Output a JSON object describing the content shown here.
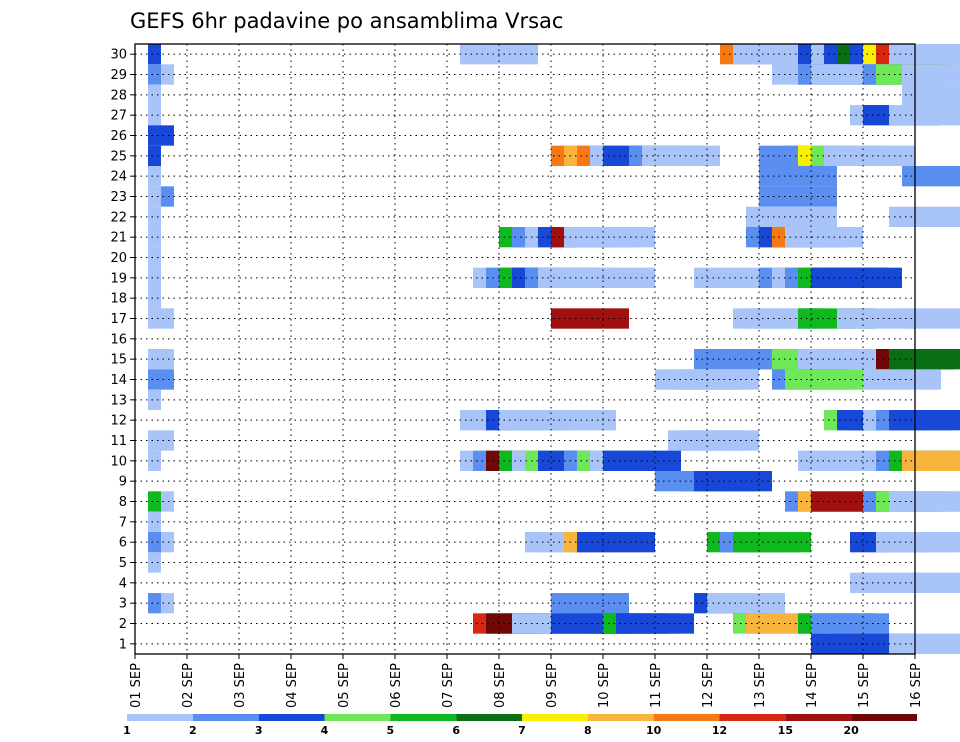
{
  "chart_data": {
    "type": "heatmap",
    "title": "GEFS 6hr padavine po ansamblima Vrsac",
    "x_tick_labels": [
      "01 SEP",
      "02 SEP",
      "03 SEP",
      "04 SEP",
      "05 SEP",
      "06 SEP",
      "07 SEP",
      "08 SEP",
      "09 SEP",
      "10 SEP",
      "11 SEP",
      "12 SEP",
      "13 SEP",
      "14 SEP",
      "15 SEP",
      "16 SEP"
    ],
    "y_tick_labels": [
      "1",
      "2",
      "3",
      "4",
      "5",
      "6",
      "7",
      "8",
      "9",
      "10",
      "11",
      "12",
      "13",
      "14",
      "15",
      "16",
      "17",
      "18",
      "19",
      "20",
      "21",
      "22",
      "23",
      "24",
      "25",
      "26",
      "27",
      "28",
      "29",
      "30"
    ],
    "x_range": [
      0,
      60
    ],
    "y_range": [
      0,
      30
    ],
    "grid": true,
    "legend_position": "bottom",
    "color_bins": [
      "#a8c4f8",
      "#5a8ef0",
      "#1848d8",
      "#6ee858",
      "#10b820",
      "#0a6e14",
      "#f8f000",
      "#f8b43c",
      "#f87814",
      "#d82814",
      "#a01010",
      "#700808"
    ],
    "legend_labels": [
      "1",
      "2",
      "3",
      "4",
      "5",
      "6",
      "7",
      "8",
      "10",
      "12",
      "15",
      "20"
    ],
    "cells": [
      [
        1,
        0,
        29,
        2
      ],
      [
        1,
        0,
        28,
        1
      ],
      [
        1,
        0,
        27,
        0
      ],
      [
        1,
        0,
        26,
        0
      ],
      [
        1,
        0,
        25,
        2
      ],
      [
        2,
        0,
        25,
        2
      ],
      [
        1,
        0,
        24,
        2
      ],
      [
        1,
        0,
        23,
        0
      ],
      [
        1,
        0,
        22,
        0
      ],
      [
        2,
        0,
        22,
        1
      ],
      [
        1,
        0,
        21,
        0
      ],
      [
        1,
        0,
        20,
        0
      ],
      [
        1,
        0,
        19,
        0
      ],
      [
        1,
        0,
        18,
        0
      ],
      [
        1,
        0,
        17,
        0
      ],
      [
        1,
        0,
        16,
        0
      ],
      [
        2,
        0,
        16,
        0
      ],
      [
        1,
        0,
        14,
        0
      ],
      [
        2,
        0,
        14,
        0
      ],
      [
        1,
        0,
        13,
        1
      ],
      [
        2,
        0,
        13,
        1
      ],
      [
        1,
        0,
        12,
        0
      ],
      [
        1,
        0,
        10,
        0
      ],
      [
        2,
        0,
        10,
        0
      ],
      [
        1,
        0,
        9,
        0
      ],
      [
        1,
        0,
        7,
        4
      ],
      [
        2,
        0,
        7,
        0
      ],
      [
        1,
        0,
        6,
        0
      ],
      [
        1,
        0,
        5,
        1
      ],
      [
        2,
        0,
        5,
        0
      ],
      [
        1,
        0,
        4,
        0
      ],
      [
        1,
        0,
        2,
        1
      ],
      [
        2,
        0,
        2,
        0
      ],
      [
        2,
        0,
        28,
        0
      ],
      [
        25,
        6,
        29,
        0
      ],
      [
        45,
        6,
        29,
        8
      ],
      [
        46,
        6,
        29,
        0
      ],
      [
        47,
        6,
        29,
        0
      ],
      [
        50,
        6,
        29,
        0
      ],
      [
        51,
        6,
        29,
        2
      ],
      [
        52,
        6,
        29,
        0
      ],
      [
        53,
        6,
        29,
        2
      ],
      [
        54,
        6,
        29,
        5
      ],
      [
        55,
        6,
        29,
        2
      ],
      [
        56,
        6,
        29,
        6
      ],
      [
        57,
        6,
        29,
        9
      ],
      [
        58,
        6,
        29,
        0
      ],
      [
        49,
        6,
        28,
        0
      ],
      [
        51,
        6,
        28,
        1
      ],
      [
        52,
        6,
        28,
        0
      ],
      [
        53,
        6,
        28,
        0
      ],
      [
        56,
        6,
        28,
        1
      ],
      [
        57,
        6,
        28,
        3
      ],
      [
        59,
        6,
        28,
        0
      ],
      [
        59,
        6,
        27,
        0
      ],
      [
        55,
        6,
        26,
        0
      ],
      [
        56,
        6,
        26,
        2
      ],
      [
        58,
        6,
        26,
        0
      ],
      [
        32,
        6,
        24,
        8
      ],
      [
        33,
        6,
        24,
        7
      ],
      [
        34,
        6,
        24,
        8
      ],
      [
        35,
        6,
        24,
        0
      ],
      [
        36,
        6,
        24,
        2
      ],
      [
        38,
        6,
        24,
        1
      ],
      [
        39,
        6,
        24,
        0
      ],
      [
        48,
        6,
        24,
        1
      ],
      [
        50,
        6,
        24,
        1
      ],
      [
        51,
        6,
        24,
        6
      ],
      [
        52,
        6,
        24,
        3
      ],
      [
        53,
        6,
        24,
        0
      ],
      [
        54,
        6,
        24,
        0
      ],
      [
        48,
        6,
        23,
        1
      ],
      [
        59,
        6,
        23,
        1
      ],
      [
        48,
        6,
        22,
        1
      ],
      [
        47,
        6,
        21,
        0
      ],
      [
        48,
        6,
        21,
        0
      ],
      [
        58,
        6,
        21,
        0
      ],
      [
        28,
        6,
        20,
        4
      ],
      [
        29,
        6,
        20,
        1
      ],
      [
        30,
        6,
        20,
        0
      ],
      [
        31,
        6,
        20,
        2
      ],
      [
        32,
        6,
        20,
        10
      ],
      [
        33,
        6,
        20,
        0
      ],
      [
        34,
        6,
        20,
        0
      ],
      [
        47,
        6,
        20,
        1
      ],
      [
        48,
        6,
        20,
        2
      ],
      [
        49,
        6,
        20,
        8
      ],
      [
        50,
        6,
        20,
        0
      ],
      [
        26,
        6,
        18,
        0
      ],
      [
        27,
        6,
        18,
        1
      ],
      [
        28,
        6,
        18,
        4
      ],
      [
        29,
        6,
        18,
        2
      ],
      [
        30,
        6,
        18,
        1
      ],
      [
        31,
        6,
        18,
        0
      ],
      [
        34,
        6,
        18,
        0
      ],
      [
        43,
        6,
        18,
        0
      ],
      [
        48,
        6,
        18,
        1
      ],
      [
        49,
        6,
        18,
        0
      ],
      [
        50,
        6,
        18,
        1
      ],
      [
        51,
        6,
        18,
        4
      ],
      [
        52,
        6,
        18,
        2
      ],
      [
        53,
        6,
        18,
        2
      ],
      [
        32,
        6,
        16,
        10
      ],
      [
        46,
        6,
        16,
        0
      ],
      [
        47,
        6,
        16,
        0
      ],
      [
        51,
        6,
        16,
        4
      ],
      [
        54,
        6,
        16,
        0
      ],
      [
        59,
        6,
        16,
        0
      ],
      [
        43,
        6,
        14,
        1
      ],
      [
        48,
        6,
        14,
        1
      ],
      [
        49,
        6,
        14,
        3
      ],
      [
        51,
        6,
        14,
        0
      ],
      [
        56,
        6,
        14,
        0
      ],
      [
        57,
        6,
        14,
        11
      ],
      [
        58,
        6,
        14,
        5
      ],
      [
        40,
        6,
        13,
        0
      ],
      [
        41,
        6,
        13,
        0
      ],
      [
        42,
        6,
        13,
        0
      ],
      [
        49,
        6,
        13,
        1
      ],
      [
        50,
        6,
        13,
        3
      ],
      [
        56,
        6,
        13,
        0
      ],
      [
        53,
        6,
        11,
        3
      ],
      [
        54,
        6,
        11,
        2
      ],
      [
        55,
        6,
        11,
        2
      ],
      [
        56,
        6,
        11,
        0
      ],
      [
        57,
        6,
        11,
        1
      ],
      [
        58,
        6,
        11,
        2
      ],
      [
        25,
        6,
        11,
        0
      ],
      [
        27,
        6,
        11,
        2
      ],
      [
        28,
        6,
        11,
        0
      ],
      [
        29,
        6,
        11,
        0
      ],
      [
        31,
        6,
        11,
        0
      ],
      [
        41,
        6,
        10,
        0
      ],
      [
        42,
        6,
        10,
        0
      ],
      [
        25,
        6,
        9,
        0
      ],
      [
        26,
        6,
        9,
        1
      ],
      [
        27,
        6,
        9,
        11
      ],
      [
        28,
        6,
        9,
        4
      ],
      [
        29,
        6,
        9,
        0
      ],
      [
        30,
        6,
        9,
        3
      ],
      [
        31,
        6,
        9,
        2
      ],
      [
        33,
        6,
        9,
        1
      ],
      [
        34,
        6,
        9,
        3
      ],
      [
        35,
        6,
        9,
        0
      ],
      [
        36,
        6,
        9,
        2
      ],
      [
        51,
        6,
        9,
        0
      ],
      [
        57,
        6,
        9,
        1
      ],
      [
        58,
        6,
        9,
        4
      ],
      [
        59,
        6,
        9,
        7
      ],
      [
        40,
        6,
        8,
        1
      ],
      [
        42,
        6,
        8,
        1
      ],
      [
        43,
        6,
        8,
        2
      ],
      [
        50,
        6,
        7,
        1
      ],
      [
        51,
        6,
        7,
        7
      ],
      [
        52,
        6,
        7,
        10
      ],
      [
        56,
        6,
        7,
        1
      ],
      [
        57,
        6,
        7,
        3
      ],
      [
        58,
        6,
        7,
        0
      ],
      [
        59,
        6,
        7,
        0
      ],
      [
        30,
        6,
        5,
        0
      ],
      [
        31,
        6,
        5,
        0
      ],
      [
        33,
        6,
        5,
        7
      ],
      [
        34,
        6,
        5,
        2
      ],
      [
        44,
        6,
        5,
        4
      ],
      [
        45,
        6,
        5,
        1
      ],
      [
        46,
        6,
        5,
        4
      ],
      [
        55,
        6,
        5,
        2
      ],
      [
        57,
        6,
        5,
        0
      ],
      [
        58,
        6,
        5,
        0
      ],
      [
        55,
        6,
        3,
        0
      ],
      [
        58,
        6,
        3,
        0
      ],
      [
        32,
        6,
        2,
        1
      ],
      [
        43,
        6,
        2,
        2
      ],
      [
        44,
        6,
        2,
        0
      ],
      [
        26,
        6,
        1,
        9
      ],
      [
        27,
        6,
        1,
        11
      ],
      [
        29,
        6,
        1,
        0
      ],
      [
        31,
        6,
        1,
        0
      ],
      [
        32,
        6,
        1,
        2
      ],
      [
        33,
        6,
        1,
        2
      ],
      [
        35,
        6,
        1,
        2
      ],
      [
        36,
        6,
        1,
        4
      ],
      [
        37,
        6,
        1,
        2
      ],
      [
        46,
        6,
        1,
        3
      ],
      [
        47,
        6,
        1,
        7
      ],
      [
        51,
        6,
        1,
        4
      ],
      [
        52,
        6,
        1,
        1
      ],
      [
        52,
        6,
        0,
        2
      ],
      [
        54,
        6,
        0,
        2
      ],
      [
        58,
        6,
        0,
        0
      ]
    ]
  }
}
